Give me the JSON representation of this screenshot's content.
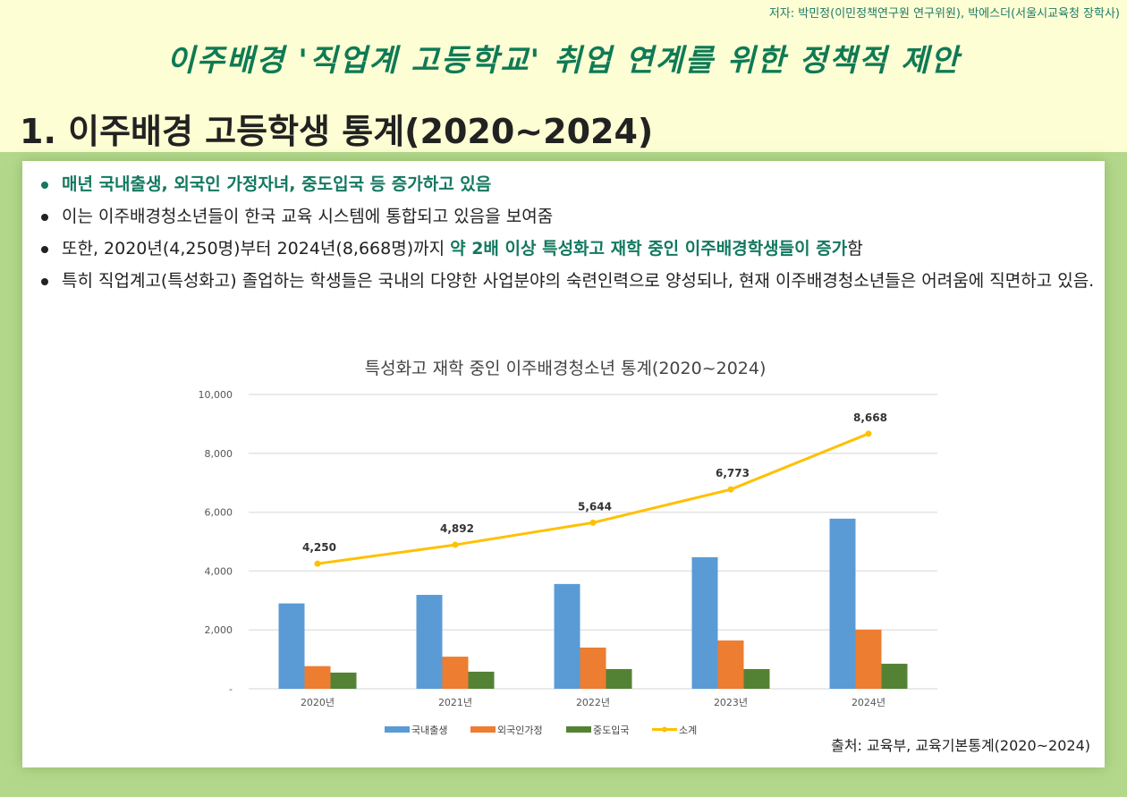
{
  "author": "저자: 박민정(이민정책연구원 연구위원), 박에스더(서울시교육청 장학사)",
  "title": "이주배경 '직업계 고등학교' 취업 연계를 위한 정책적 제안",
  "heading": "1. 이주배경 고등학생 통계(2020~2024)",
  "bullets": {
    "b1": "매년 국내출생, 외국인 가정자녀, 중도입국 등 증가하고 있음",
    "b2": "이는 이주배경청소년들이 한국 교육 시스템에 통합되고 있음을 보여줌",
    "b3a": "또한, 2020년(4,250명)부터 2024년(8,668명)까지 ",
    "b3b": "약 2배 이상 특성화고 재학 중인 이주배경학생들이 증가",
    "b3c": "함",
    "b4": "특히 직업계고(특성화고) 졸업하는 학생들은 국내의 다양한 사업분야의 숙련인력으로 양성되나, 현재 이주배경청소년들은 어려움에 직면하고 있음."
  },
  "source": "출처: 교육부, 교육기본통계(2020~2024)",
  "chart_data": {
    "type": "bar",
    "title": "특성화고 재학 중인 이주배경청소년 통계(2020~2024)",
    "categories": [
      "2020년",
      "2021년",
      "2022년",
      "2023년",
      "2024년"
    ],
    "ylim": [
      0,
      10000
    ],
    "yticks": [
      "-",
      "2,000",
      "4,000",
      "6,000",
      "8,000",
      "10,000"
    ],
    "series": [
      {
        "name": "국내출생",
        "type": "bar",
        "color": "#5b9bd5",
        "values": [
          2900,
          3190,
          3560,
          4470,
          5780
        ]
      },
      {
        "name": "외국인가정",
        "type": "bar",
        "color": "#ed7d31",
        "values": [
          770,
          1090,
          1400,
          1640,
          2010
        ]
      },
      {
        "name": "중도입국",
        "type": "bar",
        "color": "#548235",
        "values": [
          550,
          580,
          670,
          670,
          850
        ]
      },
      {
        "name": "소계",
        "type": "line",
        "color": "#ffc000",
        "values": [
          4250,
          4892,
          5644,
          6773,
          8668
        ],
        "labels": [
          "4,250",
          "4,892",
          "5,644",
          "6,773",
          "8,668"
        ]
      }
    ]
  }
}
